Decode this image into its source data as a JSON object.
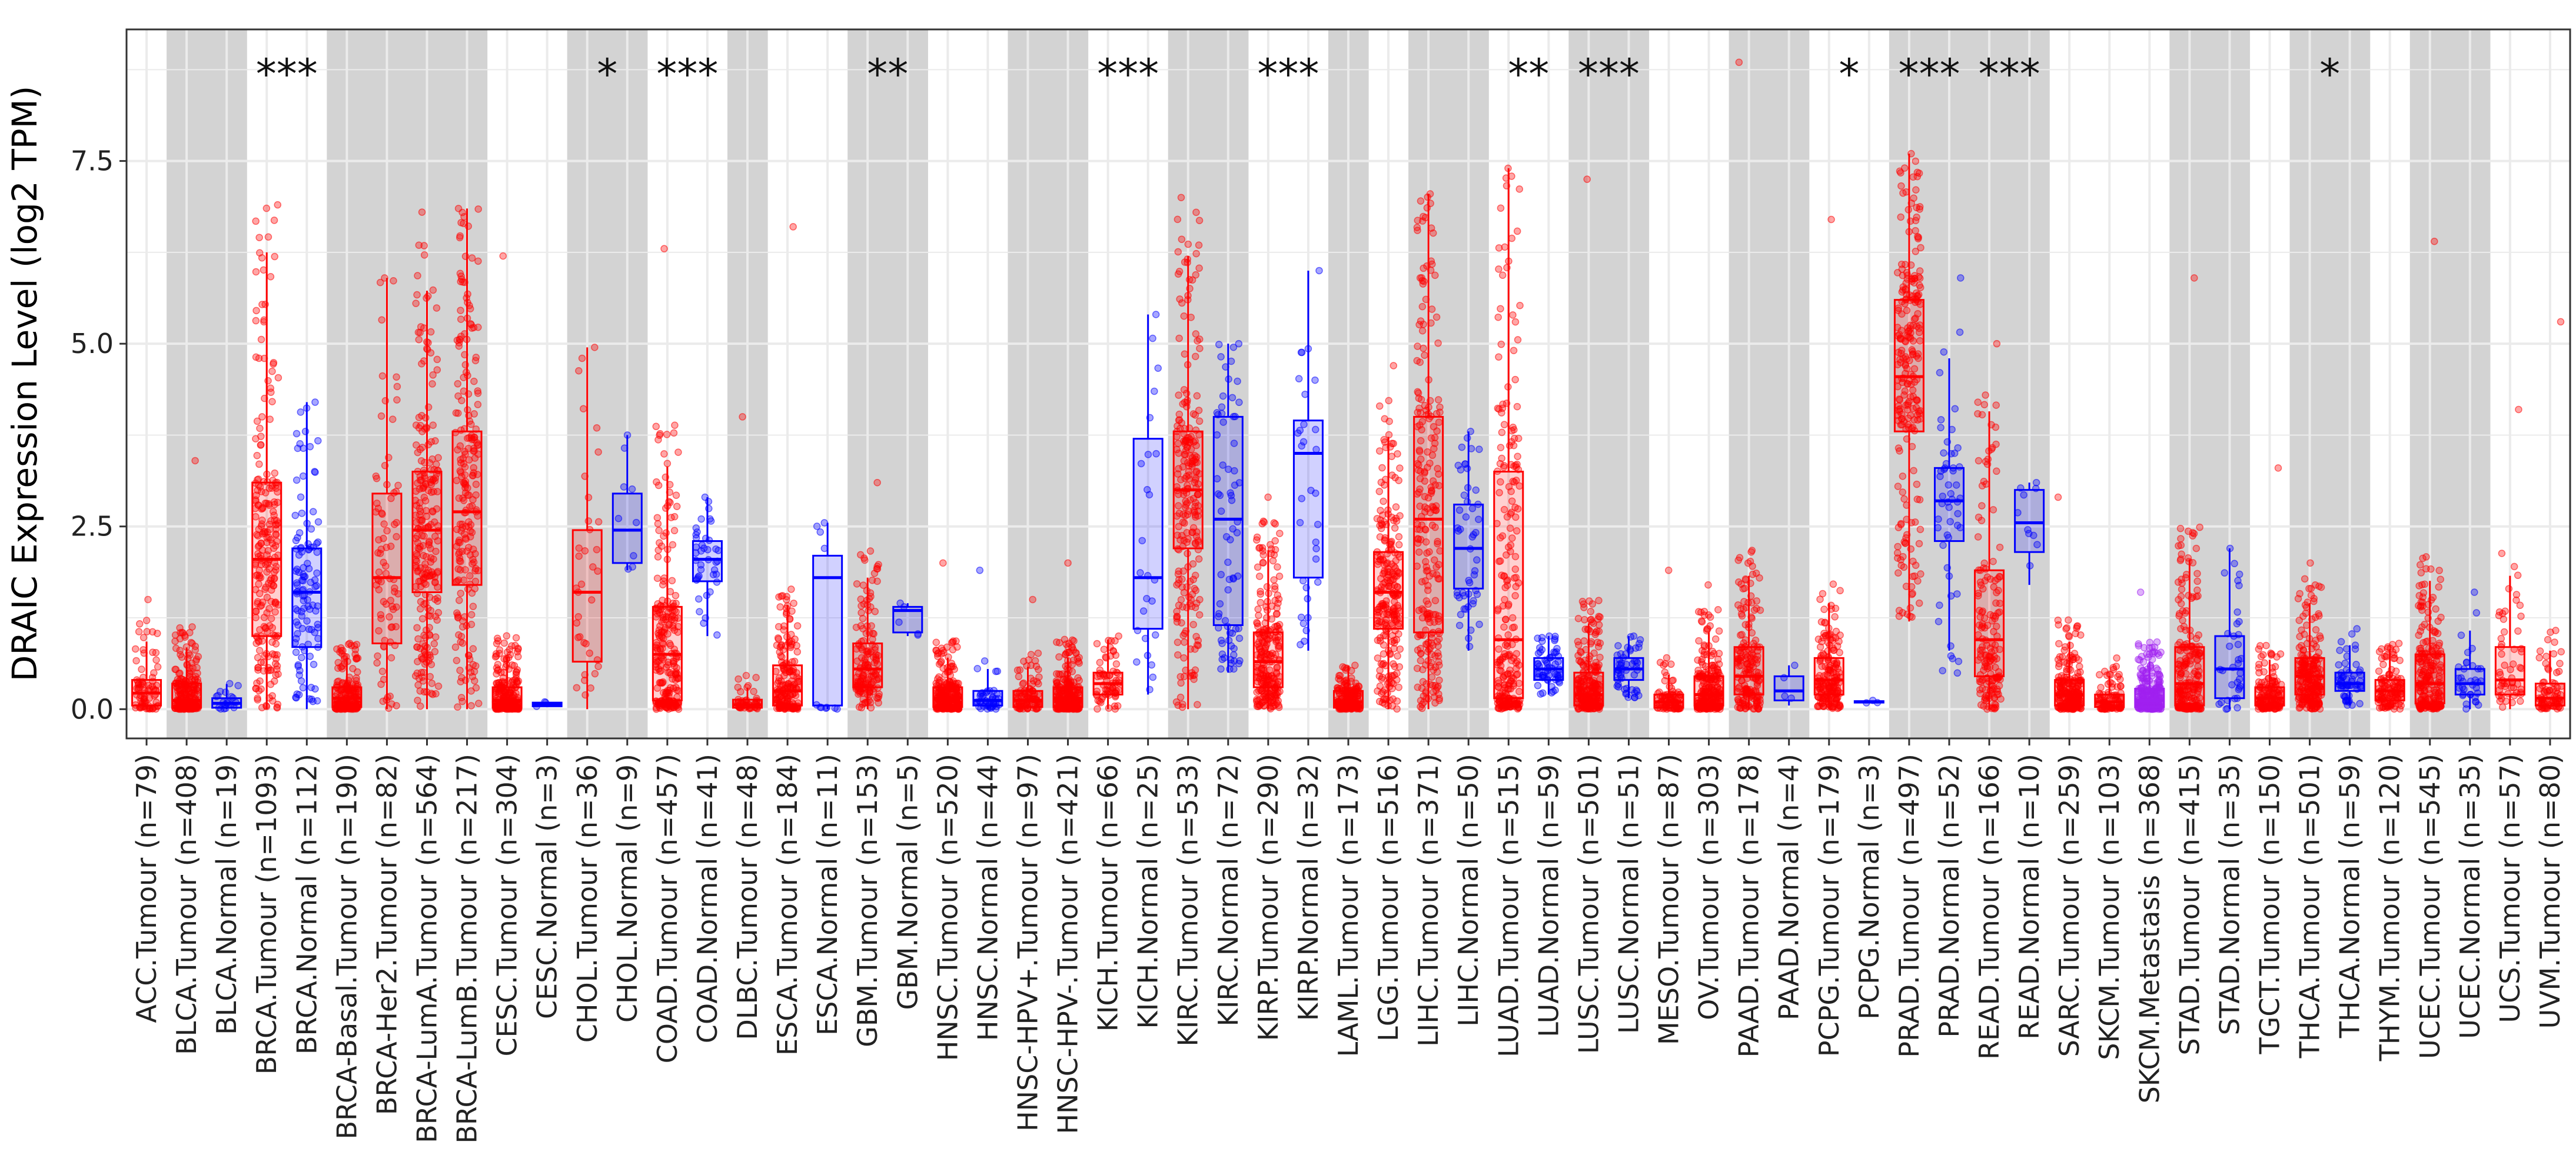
{
  "chart_data": {
    "type": "box",
    "title": "",
    "ylabel": "DRAIC Expression Level (log2 TPM)",
    "xlabel": "",
    "ylim": [
      -0.4,
      9.3
    ],
    "yticks": [
      "0.0",
      "2.5",
      "5.0",
      "7.5"
    ],
    "ytick_values": [
      0,
      2.5,
      5,
      7.5
    ],
    "colors": {
      "tumour": "#ff0000",
      "normal": "#0000ff",
      "metastasis": "#a020f0",
      "shade": "#d3d3d3"
    },
    "groups": [
      {
        "label": "ACC.Tumour   (n=79)",
        "type": "tumour",
        "shade": false,
        "q1": 0.05,
        "median": 0.22,
        "q3": 0.4,
        "lo": 0,
        "hi": 1.5,
        "sig": ""
      },
      {
        "label": "BLCA.Tumour (n=408)",
        "type": "tumour",
        "shade": true,
        "q1": 0.02,
        "median": 0.12,
        "q3": 0.35,
        "lo": 0,
        "hi": 3.4,
        "sig": ""
      },
      {
        "label": "BLCA.Normal (n=19)",
        "type": "normal",
        "shade": true,
        "q1": 0.02,
        "median": 0.08,
        "q3": 0.15,
        "lo": 0,
        "hi": 0.35,
        "sig": ""
      },
      {
        "label": "BRCA.Tumour (n=1093)",
        "type": "tumour",
        "shade": false,
        "q1": 1.0,
        "median": 2.05,
        "q3": 3.1,
        "lo": 0,
        "hi": 6.9,
        "sig": "***"
      },
      {
        "label": "BRCA.Normal (n=112)",
        "type": "normal",
        "shade": false,
        "q1": 0.85,
        "median": 1.6,
        "q3": 2.2,
        "lo": 0,
        "hi": 4.2,
        "sig": ""
      },
      {
        "label": "BRCA-Basal.Tumour (n=190)",
        "type": "tumour",
        "shade": true,
        "q1": 0.03,
        "median": 0.15,
        "q3": 0.3,
        "lo": 0,
        "hi": 0.9,
        "sig": ""
      },
      {
        "label": "BRCA-Her2.Tumour (n=82)",
        "type": "tumour",
        "shade": true,
        "q1": 0.9,
        "median": 1.8,
        "q3": 2.95,
        "lo": 0,
        "hi": 5.9,
        "sig": ""
      },
      {
        "label": "BRCA-LumA.Tumour (n=564)",
        "type": "tumour",
        "shade": true,
        "q1": 1.6,
        "median": 2.45,
        "q3": 3.25,
        "lo": 0,
        "hi": 6.8,
        "sig": ""
      },
      {
        "label": "BRCA-LumB.Tumour (n=217)",
        "type": "tumour",
        "shade": true,
        "q1": 1.7,
        "median": 2.7,
        "q3": 3.8,
        "lo": 0,
        "hi": 6.85,
        "sig": ""
      },
      {
        "label": "CESC.Tumour (n=304)",
        "type": "tumour",
        "shade": false,
        "q1": 0.02,
        "median": 0.12,
        "q3": 0.3,
        "lo": 0,
        "hi": 6.2,
        "sig": ""
      },
      {
        "label": "CESC.Normal (n=3)",
        "type": "normal",
        "shade": false,
        "q1": 0.04,
        "median": 0.07,
        "q3": 0.09,
        "lo": 0.03,
        "hi": 0.1,
        "sig": ""
      },
      {
        "label": "CHOL.Tumour (n=36)",
        "type": "tumour",
        "shade": true,
        "q1": 0.65,
        "median": 1.6,
        "q3": 2.45,
        "lo": 0,
        "hi": 4.95,
        "sig": "*"
      },
      {
        "label": "CHOL.Normal (n=9)",
        "type": "normal",
        "shade": true,
        "q1": 2.0,
        "median": 2.45,
        "q3": 2.95,
        "lo": 1.9,
        "hi": 3.75,
        "sig": ""
      },
      {
        "label": "COAD.Tumour (n=457)",
        "type": "tumour",
        "shade": false,
        "q1": 0.12,
        "median": 0.75,
        "q3": 1.4,
        "lo": 0,
        "hi": 6.3,
        "sig": "***"
      },
      {
        "label": "COAD.Normal (n=41)",
        "type": "normal",
        "shade": false,
        "q1": 1.75,
        "median": 2.05,
        "q3": 2.3,
        "lo": 1.0,
        "hi": 2.9,
        "sig": ""
      },
      {
        "label": "DLBC.Tumour (n=48)",
        "type": "tumour",
        "shade": true,
        "q1": 0.02,
        "median": 0.06,
        "q3": 0.13,
        "lo": 0,
        "hi": 4.0,
        "sig": ""
      },
      {
        "label": "ESCA.Tumour (n=184)",
        "type": "tumour",
        "shade": false,
        "q1": 0.05,
        "median": 0.25,
        "q3": 0.6,
        "lo": 0,
        "hi": 6.6,
        "sig": ""
      },
      {
        "label": "ESCA.Normal (n=11)",
        "type": "normal",
        "shade": false,
        "q1": 0.05,
        "median": 1.8,
        "q3": 2.1,
        "lo": 0,
        "hi": 2.55,
        "sig": ""
      },
      {
        "label": "GBM.Tumour (n=153)",
        "type": "tumour",
        "shade": true,
        "q1": 0.3,
        "median": 0.55,
        "q3": 0.9,
        "lo": 0,
        "hi": 3.1,
        "sig": "**"
      },
      {
        "label": "GBM.Normal (n=5)",
        "type": "normal",
        "shade": true,
        "q1": 1.05,
        "median": 1.35,
        "q3": 1.4,
        "lo": 1.0,
        "hi": 1.45,
        "sig": ""
      },
      {
        "label": "HNSC.Tumour (n=520)",
        "type": "tumour",
        "shade": false,
        "q1": 0.03,
        "median": 0.15,
        "q3": 0.3,
        "lo": 0,
        "hi": 2.0,
        "sig": ""
      },
      {
        "label": "HNSC.Normal (n=44)",
        "type": "normal",
        "shade": false,
        "q1": 0.05,
        "median": 0.12,
        "q3": 0.25,
        "lo": 0,
        "hi": 1.9,
        "sig": ""
      },
      {
        "label": "HNSC-HPV+.Tumour (n=97)",
        "type": "tumour",
        "shade": true,
        "q1": 0.03,
        "median": 0.12,
        "q3": 0.25,
        "lo": 0,
        "hi": 1.5,
        "sig": ""
      },
      {
        "label": "HNSC-HPV-.Tumour (n=421)",
        "type": "tumour",
        "shade": true,
        "q1": 0.03,
        "median": 0.15,
        "q3": 0.3,
        "lo": 0,
        "hi": 2.0,
        "sig": ""
      },
      {
        "label": "KICH.Tumour (n=66)",
        "type": "tumour",
        "shade": false,
        "q1": 0.2,
        "median": 0.35,
        "q3": 0.5,
        "lo": 0,
        "hi": 1.0,
        "sig": "***"
      },
      {
        "label": "KICH.Normal (n=25)",
        "type": "normal",
        "shade": false,
        "q1": 1.1,
        "median": 1.8,
        "q3": 3.7,
        "lo": 0.2,
        "hi": 5.4,
        "sig": ""
      },
      {
        "label": "KIRC.Tumour (n=533)",
        "type": "tumour",
        "shade": true,
        "q1": 2.2,
        "median": 3.0,
        "q3": 3.8,
        "lo": 0,
        "hi": 7.0,
        "sig": ""
      },
      {
        "label": "KIRC.Normal (n=72)",
        "type": "normal",
        "shade": true,
        "q1": 1.15,
        "median": 2.6,
        "q3": 4.0,
        "lo": 0.5,
        "hi": 5.0,
        "sig": ""
      },
      {
        "label": "KIRP.Tumour (n=290)",
        "type": "tumour",
        "shade": false,
        "q1": 0.3,
        "median": 0.65,
        "q3": 1.05,
        "lo": 0,
        "hi": 2.9,
        "sig": "***"
      },
      {
        "label": "KIRP.Normal (n=32)",
        "type": "normal",
        "shade": false,
        "q1": 1.8,
        "median": 3.5,
        "q3": 3.95,
        "lo": 0.8,
        "hi": 6.0,
        "sig": ""
      },
      {
        "label": "LAML.Tumour (n=173)",
        "type": "tumour",
        "shade": true,
        "q1": 0.02,
        "median": 0.1,
        "q3": 0.25,
        "lo": 0,
        "hi": 0.6,
        "sig": ""
      },
      {
        "label": "LGG.Tumour (n=516)",
        "type": "tumour",
        "shade": false,
        "q1": 1.1,
        "median": 1.6,
        "q3": 2.15,
        "lo": 0,
        "hi": 4.7,
        "sig": ""
      },
      {
        "label": "LIHC.Tumour (n=371)",
        "type": "tumour",
        "shade": true,
        "q1": 1.05,
        "median": 2.6,
        "q3": 4.0,
        "lo": 0,
        "hi": 7.05,
        "sig": ""
      },
      {
        "label": "LIHC.Normal (n=50)",
        "type": "normal",
        "shade": true,
        "q1": 1.65,
        "median": 2.2,
        "q3": 2.8,
        "lo": 0.8,
        "hi": 3.8,
        "sig": ""
      },
      {
        "label": "LUAD.Tumour (n=515)",
        "type": "tumour",
        "shade": false,
        "q1": 0.15,
        "median": 0.95,
        "q3": 3.25,
        "lo": 0,
        "hi": 7.4,
        "sig": "**"
      },
      {
        "label": "LUAD.Normal (n=59)",
        "type": "normal",
        "shade": false,
        "q1": 0.4,
        "median": 0.55,
        "q3": 0.7,
        "lo": 0.2,
        "hi": 1.0,
        "sig": ""
      },
      {
        "label": "LUSC.Tumour (n=501)",
        "type": "tumour",
        "shade": true,
        "q1": 0.05,
        "median": 0.2,
        "q3": 0.5,
        "lo": 0,
        "hi": 7.25,
        "sig": "***"
      },
      {
        "label": "LUSC.Normal (n=51)",
        "type": "normal",
        "shade": true,
        "q1": 0.4,
        "median": 0.55,
        "q3": 0.7,
        "lo": 0.15,
        "hi": 1.0,
        "sig": ""
      },
      {
        "label": "MESO.Tumour (n=87)",
        "type": "tumour",
        "shade": false,
        "q1": 0.02,
        "median": 0.1,
        "q3": 0.2,
        "lo": 0,
        "hi": 1.9,
        "sig": ""
      },
      {
        "label": "OV.Tumour (n=303)",
        "type": "tumour",
        "shade": false,
        "q1": 0.05,
        "median": 0.2,
        "q3": 0.45,
        "lo": 0,
        "hi": 1.7,
        "sig": ""
      },
      {
        "label": "PAAD.Tumour (n=178)",
        "type": "tumour",
        "shade": true,
        "q1": 0.2,
        "median": 0.45,
        "q3": 0.85,
        "lo": 0,
        "hi": 8.85,
        "sig": ""
      },
      {
        "label": "PAAD.Normal (n=4)",
        "type": "normal",
        "shade": true,
        "q1": 0.12,
        "median": 0.25,
        "q3": 0.45,
        "lo": 0.05,
        "hi": 0.6,
        "sig": ""
      },
      {
        "label": "PCPG.Tumour (n=179)",
        "type": "tumour",
        "shade": false,
        "q1": 0.2,
        "median": 0.4,
        "q3": 0.7,
        "lo": 0,
        "hi": 6.7,
        "sig": "*"
      },
      {
        "label": "PCPG.Normal (n=3)",
        "type": "normal",
        "shade": false,
        "q1": 0.09,
        "median": 0.1,
        "q3": 0.11,
        "lo": 0.08,
        "hi": 0.12,
        "sig": ""
      },
      {
        "label": "PRAD.Tumour (n=497)",
        "type": "tumour",
        "shade": true,
        "q1": 3.8,
        "median": 4.55,
        "q3": 5.6,
        "lo": 1.2,
        "hi": 7.6,
        "sig": "***"
      },
      {
        "label": "PRAD.Normal (n=52)",
        "type": "normal",
        "shade": true,
        "q1": 2.3,
        "median": 2.85,
        "q3": 3.3,
        "lo": 0.1,
        "hi": 5.9,
        "sig": ""
      },
      {
        "label": "READ.Tumour (n=166)",
        "type": "tumour",
        "shade": true,
        "q1": 0.45,
        "median": 0.95,
        "q3": 1.9,
        "lo": 0,
        "hi": 5.0,
        "sig": "***"
      },
      {
        "label": "READ.Normal (n=10)",
        "type": "normal",
        "shade": true,
        "q1": 2.15,
        "median": 2.55,
        "q3": 3.0,
        "lo": 1.7,
        "hi": 3.1,
        "sig": ""
      },
      {
        "label": "SARC.Tumour (n=259)",
        "type": "tumour",
        "shade": false,
        "q1": 0.05,
        "median": 0.2,
        "q3": 0.4,
        "lo": 0,
        "hi": 2.9,
        "sig": ""
      },
      {
        "label": "SKCM.Tumour (n=103)",
        "type": "tumour",
        "shade": false,
        "q1": 0.03,
        "median": 0.1,
        "q3": 0.2,
        "lo": 0,
        "hi": 0.7,
        "sig": ""
      },
      {
        "label": "SKCM.Metastasis (n=368)",
        "type": "metastasis",
        "shade": false,
        "q1": 0.03,
        "median": 0.12,
        "q3": 0.28,
        "lo": 0,
        "hi": 1.6,
        "sig": ""
      },
      {
        "label": "STAD.Tumour (n=415)",
        "type": "tumour",
        "shade": true,
        "q1": 0.05,
        "median": 0.35,
        "q3": 0.85,
        "lo": 0,
        "hi": 5.9,
        "sig": ""
      },
      {
        "label": "STAD.Normal (n=35)",
        "type": "normal",
        "shade": true,
        "q1": 0.15,
        "median": 0.55,
        "q3": 1.0,
        "lo": 0,
        "hi": 2.2,
        "sig": ""
      },
      {
        "label": "TGCT.Tumour (n=150)",
        "type": "tumour",
        "shade": false,
        "q1": 0.05,
        "median": 0.15,
        "q3": 0.3,
        "lo": 0,
        "hi": 3.3,
        "sig": ""
      },
      {
        "label": "THCA.Tumour (n=501)",
        "type": "tumour",
        "shade": true,
        "q1": 0.2,
        "median": 0.45,
        "q3": 0.7,
        "lo": 0,
        "hi": 2.0,
        "sig": "*"
      },
      {
        "label": "THCA.Normal (n=59)",
        "type": "normal",
        "shade": true,
        "q1": 0.25,
        "median": 0.35,
        "q3": 0.5,
        "lo": 0.05,
        "hi": 1.1,
        "sig": ""
      },
      {
        "label": "THYM.Tumour (n=120)",
        "type": "tumour",
        "shade": false,
        "q1": 0.12,
        "median": 0.25,
        "q3": 0.4,
        "lo": 0,
        "hi": 0.9,
        "sig": ""
      },
      {
        "label": "UCEC.Tumour (n=545)",
        "type": "tumour",
        "shade": true,
        "q1": 0.08,
        "median": 0.35,
        "q3": 0.75,
        "lo": 0,
        "hi": 6.4,
        "sig": ""
      },
      {
        "label": "UCEC.Normal (n=35)",
        "type": "normal",
        "shade": true,
        "q1": 0.2,
        "median": 0.35,
        "q3": 0.55,
        "lo": 0,
        "hi": 1.6,
        "sig": ""
      },
      {
        "label": "UCS.Tumour (n=57)",
        "type": "tumour",
        "shade": false,
        "q1": 0.2,
        "median": 0.4,
        "q3": 0.85,
        "lo": 0,
        "hi": 4.1,
        "sig": ""
      },
      {
        "label": "UVM.Tumour (n=80)",
        "type": "tumour",
        "shade": false,
        "q1": 0.05,
        "median": 0.15,
        "q3": 0.35,
        "lo": 0,
        "hi": 5.3,
        "sig": ""
      }
    ]
  }
}
